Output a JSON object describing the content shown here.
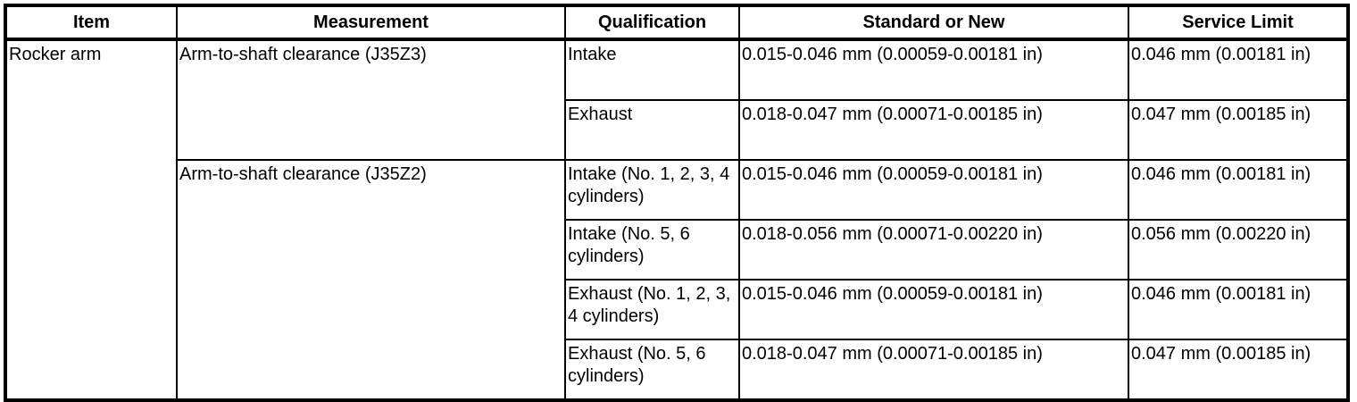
{
  "headers": [
    "Item",
    "Measurement",
    "Qualification",
    "Standard or New",
    "Service Limit"
  ],
  "item": "Rocker arm",
  "groups": [
    {
      "measurement": "Arm-to-shaft clearance (J35Z3)",
      "rows": [
        {
          "qualification": "Intake",
          "standard": "0.015-0.046 mm (0.00059-0.00181 in)",
          "limit": "0.046 mm (0.00181 in)"
        },
        {
          "qualification": "Exhaust",
          "standard": "0.018-0.047 mm (0.00071-0.00185 in)",
          "limit": "0.047 mm (0.00185 in)"
        }
      ]
    },
    {
      "measurement": "Arm-to-shaft clearance (J35Z2)",
      "rows": [
        {
          "qualification": "Intake (No. 1, 2, 3, 4 cylinders)",
          "standard": "0.015-0.046 mm (0.00059-0.00181 in)",
          "limit": "0.046 mm (0.00181 in)"
        },
        {
          "qualification": "Intake (No. 5, 6 cylinders)",
          "standard": "0.018-0.056 mm (0.00071-0.00220 in)",
          "limit": "0.056 mm (0.00220 in)"
        },
        {
          "qualification": "Exhaust (No. 1, 2, 3, 4 cylinders)",
          "standard": "0.015-0.046 mm (0.00059-0.00181 in)",
          "limit": "0.046 mm (0.00181 in)"
        },
        {
          "qualification": "Exhaust (No. 5, 6 cylinders)",
          "standard": "0.018-0.047 mm (0.00071-0.00185 in)",
          "limit": "0.047 mm (0.00185 in)"
        }
      ]
    }
  ]
}
